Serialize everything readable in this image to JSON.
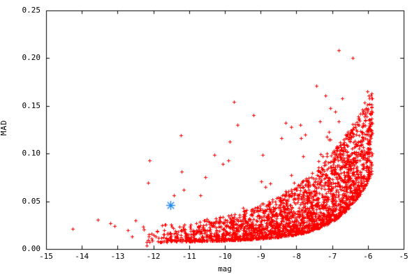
{
  "chart_data": {
    "type": "scatter",
    "title": "",
    "xlabel": "mag",
    "ylabel": "MAD",
    "xlim": [
      -15,
      -5
    ],
    "ylim": [
      0,
      0.25
    ],
    "xticks": [
      -15,
      -14,
      -13,
      -12,
      -11,
      -10,
      -9,
      -8,
      -7,
      -6,
      -5
    ],
    "yticks": [
      0,
      0.05,
      0.1,
      0.15,
      0.2,
      0.25
    ],
    "ytick_labels": [
      "0.00",
      "0.05",
      "0.10",
      "0.15",
      "0.20",
      "0.25"
    ],
    "grid": false,
    "legend": "none",
    "background_color": "#ffffff",
    "axis_color": "#000000",
    "text_color": "#000000",
    "series": [
      {
        "name": "mad-vs-mag-points",
        "marker": "plus",
        "color": "#ff0000",
        "marker_size": 5,
        "cloud": {
          "seed": 1337,
          "count": 2600,
          "x_min": -12.45,
          "x_max": -5.88,
          "x_skew": 0.5,
          "lower_base": 0.007,
          "lower_slope": 0.004,
          "lower_exp_amp": 0.06,
          "lower_exp_center": -6.0,
          "lower_exp_scale": 0.85,
          "upper_base": 0.02,
          "upper_exp_amp": 0.15,
          "upper_exp_center": -5.9,
          "upper_exp_scale": 1.8,
          "pow_left": 2.6,
          "pow_right": 1.3,
          "tail_prob": 0.045,
          "tail_pow": 3.2,
          "tail_frac": 0.8,
          "y_max": 0.185
        },
        "outliers": [
          [
            -14.26,
            0.021
          ],
          [
            -13.55,
            0.031
          ],
          [
            -13.2,
            0.027
          ],
          [
            -13.08,
            0.024
          ],
          [
            -12.72,
            0.02
          ],
          [
            -12.5,
            0.03
          ],
          [
            -12.6,
            0.013
          ],
          [
            -12.19,
            0.004
          ],
          [
            -11.42,
            0.056
          ],
          [
            -11.15,
            0.062
          ],
          [
            -10.55,
            0.075
          ],
          [
            -10.3,
            0.099
          ],
          [
            -10.05,
            0.089
          ],
          [
            -9.75,
            0.154
          ],
          [
            -8.95,
            0.099
          ],
          [
            -8.42,
            0.116
          ],
          [
            -8.3,
            0.132
          ],
          [
            -7.9,
            0.13
          ],
          [
            -7.44,
            0.171
          ],
          [
            -6.82,
            0.208
          ],
          [
            -6.42,
            0.2
          ],
          [
            -6.52,
            0.065
          ]
        ]
      },
      {
        "name": "highlight-star",
        "marker": "asterisk",
        "color": "#1c86ee",
        "marker_size": 13,
        "points": [
          [
            -11.52,
            0.046
          ]
        ]
      }
    ]
  }
}
